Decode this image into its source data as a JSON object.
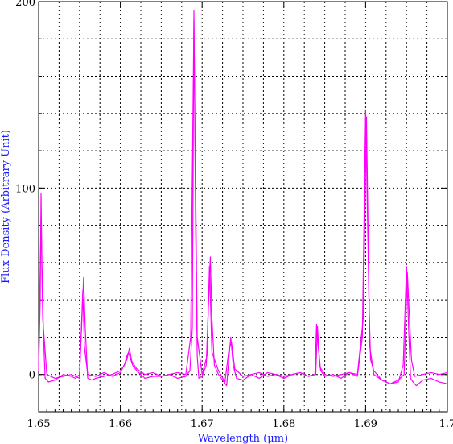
{
  "chart_data": {
    "type": "line",
    "title": "",
    "xlabel": "Wavelength (μm)",
    "ylabel": "Flux Density (Arbitrary Unit)",
    "xlim": [
      1.65,
      1.7
    ],
    "ylim": [
      -20,
      200
    ],
    "x_ticks": [
      "1.65",
      "1.66",
      "1.67",
      "1.68",
      "1.69",
      "1.7"
    ],
    "y_ticks": [
      "0",
      "100",
      "200"
    ],
    "grid": true,
    "grid_style": "dotted",
    "line_color": "#ff00ff",
    "series": [
      {
        "x": [
          1.65,
          1.6502,
          1.6503,
          1.6504,
          1.6506,
          1.6508,
          1.6512,
          1.652,
          1.653,
          1.654,
          1.6545,
          1.655,
          1.6553,
          1.6555,
          1.6557,
          1.656,
          1.6565,
          1.657,
          1.658,
          1.659,
          1.66,
          1.6605,
          1.6608,
          1.661,
          1.6612,
          1.6615,
          1.662,
          1.663,
          1.664,
          1.665,
          1.666,
          1.667,
          1.668,
          1.6685,
          1.6688,
          1.669,
          1.6692,
          1.6694,
          1.6696,
          1.67,
          1.6705,
          1.6708,
          1.671,
          1.6712,
          1.6715,
          1.672,
          1.6725,
          1.673,
          1.6733,
          1.6735,
          1.6738,
          1.6742,
          1.675,
          1.676,
          1.677,
          1.678,
          1.679,
          1.68,
          1.681,
          1.682,
          1.683,
          1.6838,
          1.684,
          1.6842,
          1.6845,
          1.685,
          1.686,
          1.687,
          1.688,
          1.689,
          1.6896,
          1.69,
          1.6904,
          1.6906,
          1.691,
          1.692,
          1.693,
          1.694,
          1.6946,
          1.695,
          1.6953,
          1.6955,
          1.6958,
          1.6962,
          1.697,
          1.698,
          1.699,
          1.7
        ],
        "y": [
          2,
          40,
          97,
          60,
          20,
          -2,
          -4,
          -3,
          0,
          -1,
          -2,
          0,
          30,
          52,
          25,
          -2,
          -3,
          -2,
          -1,
          0,
          2,
          5,
          10,
          12,
          9,
          5,
          2,
          -2,
          -1,
          -1,
          0,
          -2,
          -1,
          2,
          25,
          195,
          80,
          10,
          -2,
          -1,
          5,
          40,
          63,
          30,
          5,
          0,
          -3,
          -6,
          10,
          20,
          5,
          -2,
          -3,
          0,
          1,
          -1,
          0,
          -2,
          0,
          1,
          -1,
          0,
          27,
          15,
          2,
          -1,
          0,
          -2,
          1,
          -1,
          20,
          142,
          40,
          8,
          2,
          -3,
          -5,
          -4,
          5,
          58,
          20,
          -2,
          -4,
          -6,
          -3,
          -2,
          -4,
          -5
        ]
      },
      {
        "x": [
          1.65,
          1.6503,
          1.6505,
          1.651,
          1.652,
          1.653,
          1.654,
          1.655,
          1.6554,
          1.6556,
          1.656,
          1.657,
          1.658,
          1.659,
          1.66,
          1.6608,
          1.6611,
          1.6614,
          1.662,
          1.663,
          1.664,
          1.665,
          1.666,
          1.667,
          1.668,
          1.6686,
          1.669,
          1.6694,
          1.67,
          1.6706,
          1.6709,
          1.6712,
          1.672,
          1.6728,
          1.6733,
          1.6736,
          1.674,
          1.675,
          1.676,
          1.677,
          1.678,
          1.679,
          1.68,
          1.681,
          1.682,
          1.683,
          1.6839,
          1.6841,
          1.6844,
          1.685,
          1.686,
          1.687,
          1.688,
          1.689,
          1.6897,
          1.6901,
          1.6905,
          1.691,
          1.692,
          1.693,
          1.694,
          1.6947,
          1.6951,
          1.6956,
          1.696,
          1.697,
          1.698,
          1.699,
          1.7
        ],
        "y": [
          5,
          85,
          30,
          0,
          -2,
          -1,
          0,
          -2,
          45,
          15,
          0,
          -1,
          1,
          -1,
          1,
          8,
          14,
          7,
          3,
          0,
          1,
          -1,
          0,
          1,
          0,
          20,
          190,
          20,
          0,
          10,
          58,
          12,
          2,
          -4,
          14,
          17,
          3,
          -1,
          0,
          -2,
          1,
          0,
          -1,
          0,
          1,
          -1,
          0,
          26,
          4,
          0,
          -1,
          0,
          1,
          0,
          30,
          138,
          15,
          0,
          -3,
          -5,
          -3,
          0,
          55,
          8,
          -1,
          0,
          1,
          0,
          1
        ]
      }
    ]
  }
}
